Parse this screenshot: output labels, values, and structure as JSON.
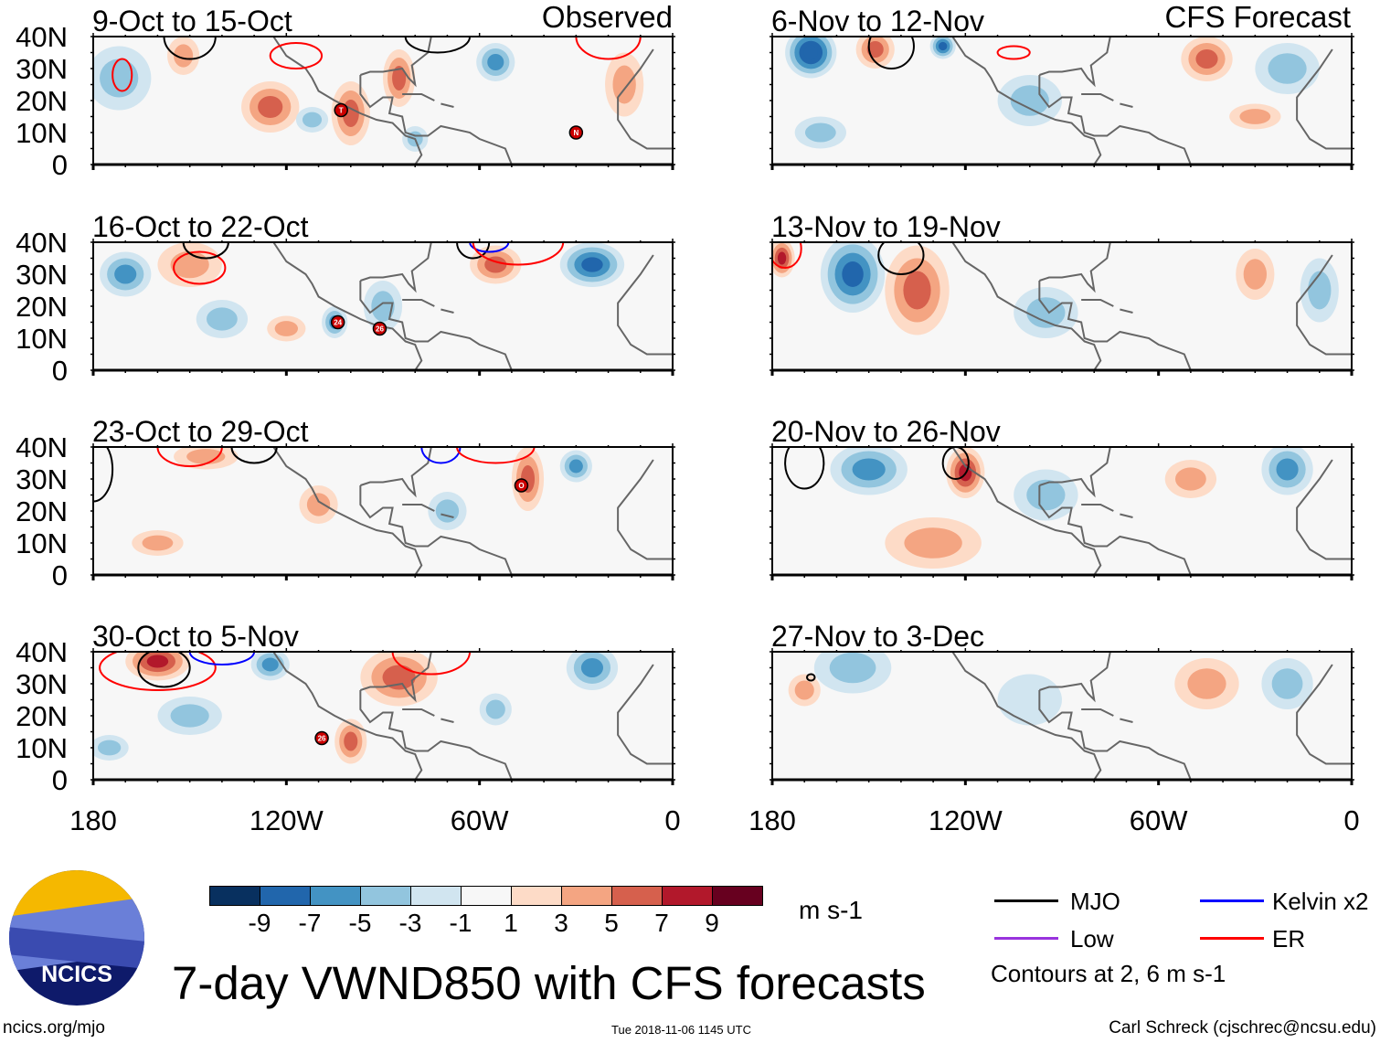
{
  "header": {
    "left_label": "Observed",
    "right_label": "CFS Forecast"
  },
  "axes": {
    "lat_ticks": [
      "40N",
      "30N",
      "20N",
      "10N",
      "0"
    ],
    "lon_ticks": [
      "180",
      "120W",
      "60W",
      "0"
    ]
  },
  "colors": {
    "levels": [
      "#08305f",
      "#2166ac",
      "#4393c3",
      "#92c5de",
      "#d1e5f0",
      "#f7f7f7",
      "#fddbc7",
      "#f4a582",
      "#d6604d",
      "#b2182b",
      "#67001f"
    ],
    "mjo": "#000000",
    "kelvin": "#0000ff",
    "low": "#9933dd",
    "er": "#ff0000",
    "coast": "#666666"
  },
  "colorbar": {
    "labels": [
      "-9",
      "-7",
      "-5",
      "-3",
      "-1",
      "1",
      "3",
      "5",
      "7",
      "9"
    ],
    "units": "m s-1"
  },
  "legend": {
    "mjo": "MJO",
    "kelvin": "Kelvin x2",
    "low": "Low",
    "er": "ER",
    "contours_note": "Contours at 2, 6 m s-1"
  },
  "footer": {
    "title": "7-day VWND850 with CFS forecasts",
    "url": "ncics.org/mjo",
    "timestamp": "Tue 2018-11-06 1145 UTC",
    "author": "Carl Schreck (cjschrec@ncsu.edu)",
    "logo_text": "NCICS"
  },
  "chart_data": {
    "type": "heatmap",
    "variable": "850-hPa meridional wind anomaly",
    "units": "m s-1",
    "lon_range": [
      -180,
      0
    ],
    "lat_range": [
      0,
      40
    ],
    "panels": [
      {
        "title": "9-Oct to 15-Oct",
        "anom": [
          [
            -125,
            18,
            9,
            8,
            5
          ],
          [
            -100,
            16,
            6,
            10,
            5
          ],
          [
            -85,
            27,
            5,
            9,
            5
          ],
          [
            -152,
            34,
            5,
            6,
            3
          ],
          [
            -55,
            32,
            6,
            6,
            -5
          ],
          [
            -172,
            27,
            10,
            10,
            -3
          ],
          [
            -15,
            25,
            6,
            10,
            3
          ],
          [
            -112,
            14,
            5,
            4,
            -3
          ],
          [
            -80,
            8,
            4,
            4,
            -3
          ]
        ],
        "contours": [
          [
            "er",
            -171,
            28,
            3,
            5
          ],
          [
            "er",
            -117,
            34,
            8,
            4
          ],
          [
            "mjo",
            -150,
            40,
            8,
            7
          ],
          [
            "mjo",
            -73,
            40,
            10,
            5
          ],
          [
            "er",
            -20,
            40,
            10,
            7
          ]
        ],
        "storms": [
          [
            "T",
            -103,
            17
          ],
          [
            "N",
            -30,
            10
          ]
        ]
      },
      {
        "title": "16-Oct to 22-Oct",
        "anom": [
          [
            -170,
            30,
            8,
            7,
            -5
          ],
          [
            -150,
            33,
            10,
            7,
            3
          ],
          [
            -55,
            33,
            8,
            6,
            5
          ],
          [
            -25,
            33,
            10,
            7,
            -7
          ],
          [
            -105,
            15,
            4,
            5,
            -5
          ],
          [
            -120,
            13,
            6,
            4,
            3
          ],
          [
            -90,
            20,
            6,
            8,
            -3
          ],
          [
            -140,
            16,
            8,
            6,
            -3
          ]
        ],
        "contours": [
          [
            "er",
            -147,
            32,
            8,
            5
          ],
          [
            "mjo",
            -145,
            40,
            7,
            5
          ],
          [
            "mjo",
            -62,
            40,
            5,
            5
          ],
          [
            "kelvin",
            -57,
            40,
            6,
            3
          ],
          [
            "er",
            -48,
            40,
            14,
            7
          ]
        ],
        "storms": [
          [
            "24",
            -104,
            15
          ],
          [
            "26",
            -91,
            13
          ]
        ]
      },
      {
        "title": "23-Oct to 29-Oct",
        "anom": [
          [
            -45,
            30,
            5,
            10,
            5
          ],
          [
            -30,
            34,
            5,
            5,
            -5
          ],
          [
            -70,
            20,
            6,
            6,
            -3
          ],
          [
            -145,
            37,
            10,
            4,
            3
          ],
          [
            -110,
            22,
            6,
            6,
            3
          ],
          [
            -160,
            10,
            8,
            4,
            3
          ]
        ],
        "contours": [
          [
            "er",
            -150,
            40,
            10,
            6
          ],
          [
            "mjo",
            -130,
            40,
            7,
            5
          ],
          [
            "kelvin",
            -72,
            40,
            6,
            5
          ],
          [
            "er",
            -55,
            40,
            12,
            5
          ],
          [
            "mjo",
            -180,
            33,
            6,
            10
          ]
        ],
        "storms": [
          [
            "O",
            -47,
            28
          ]
        ]
      },
      {
        "title": "30-Oct to 5-Nov",
        "anom": [
          [
            -160,
            37,
            10,
            6,
            7
          ],
          [
            -125,
            36,
            6,
            5,
            -5
          ],
          [
            -85,
            32,
            12,
            9,
            5
          ],
          [
            -25,
            35,
            8,
            7,
            -5
          ],
          [
            -55,
            22,
            5,
            5,
            -3
          ],
          [
            -100,
            12,
            5,
            7,
            5
          ],
          [
            -150,
            20,
            10,
            6,
            -3
          ],
          [
            -175,
            10,
            6,
            4,
            -3
          ]
        ],
        "contours": [
          [
            "er",
            -160,
            35,
            18,
            7
          ],
          [
            "mjo",
            -158,
            35,
            8,
            6
          ],
          [
            "kelvin",
            -140,
            40,
            10,
            4
          ],
          [
            "er",
            -75,
            40,
            12,
            7
          ]
        ],
        "storms": [
          [
            "26",
            -109,
            13
          ]
        ]
      }
    ],
    "forecast_panels": [
      {
        "title": "6-Nov to 12-Nov",
        "anom": [
          [
            -168,
            35,
            8,
            8,
            -9
          ],
          [
            -148,
            36,
            6,
            6,
            5
          ],
          [
            -127,
            37,
            4,
            4,
            -7
          ],
          [
            -45,
            33,
            8,
            7,
            5
          ],
          [
            -20,
            30,
            10,
            8,
            -3
          ],
          [
            -100,
            20,
            10,
            8,
            -3
          ],
          [
            -30,
            15,
            8,
            4,
            3
          ],
          [
            -165,
            10,
            8,
            5,
            -3
          ]
        ],
        "contours": [
          [
            "mjo",
            -143,
            37,
            7,
            7
          ],
          [
            "er",
            -105,
            35,
            5,
            2
          ]
        ],
        "storms": []
      },
      {
        "title": "13-Nov to 19-Nov",
        "anom": [
          [
            -177,
            35,
            4,
            6,
            7
          ],
          [
            -155,
            30,
            10,
            12,
            -7
          ],
          [
            -135,
            25,
            10,
            14,
            5
          ],
          [
            -30,
            30,
            6,
            8,
            3
          ],
          [
            -95,
            18,
            10,
            8,
            -3
          ],
          [
            -10,
            25,
            6,
            10,
            -3
          ]
        ],
        "contours": [
          [
            "er",
            -176,
            38,
            5,
            6
          ],
          [
            "mjo",
            -140,
            36,
            7,
            6
          ]
        ],
        "storms": []
      },
      {
        "title": "20-Nov to 26-Nov",
        "anom": [
          [
            -150,
            33,
            12,
            8,
            -5
          ],
          [
            -120,
            32,
            6,
            8,
            7
          ],
          [
            -95,
            25,
            10,
            8,
            -3
          ],
          [
            -20,
            33,
            8,
            8,
            -5
          ],
          [
            -50,
            30,
            8,
            6,
            3
          ],
          [
            -130,
            10,
            15,
            8,
            3
          ]
        ],
        "contours": [
          [
            "mjo",
            -170,
            35,
            6,
            8
          ],
          [
            "mjo",
            -123,
            35,
            4,
            5
          ]
        ],
        "storms": []
      },
      {
        "title": "27-Nov to 3-Dec",
        "anom": [
          [
            -155,
            35,
            12,
            8,
            -3
          ],
          [
            -45,
            30,
            10,
            8,
            3
          ],
          [
            -170,
            28,
            5,
            5,
            3
          ],
          [
            -100,
            25,
            10,
            8,
            -1
          ],
          [
            -20,
            30,
            8,
            8,
            -3
          ]
        ],
        "contours": [
          [
            "mjo",
            -168,
            32,
            1.2,
            1
          ]
        ],
        "storms": []
      }
    ]
  }
}
